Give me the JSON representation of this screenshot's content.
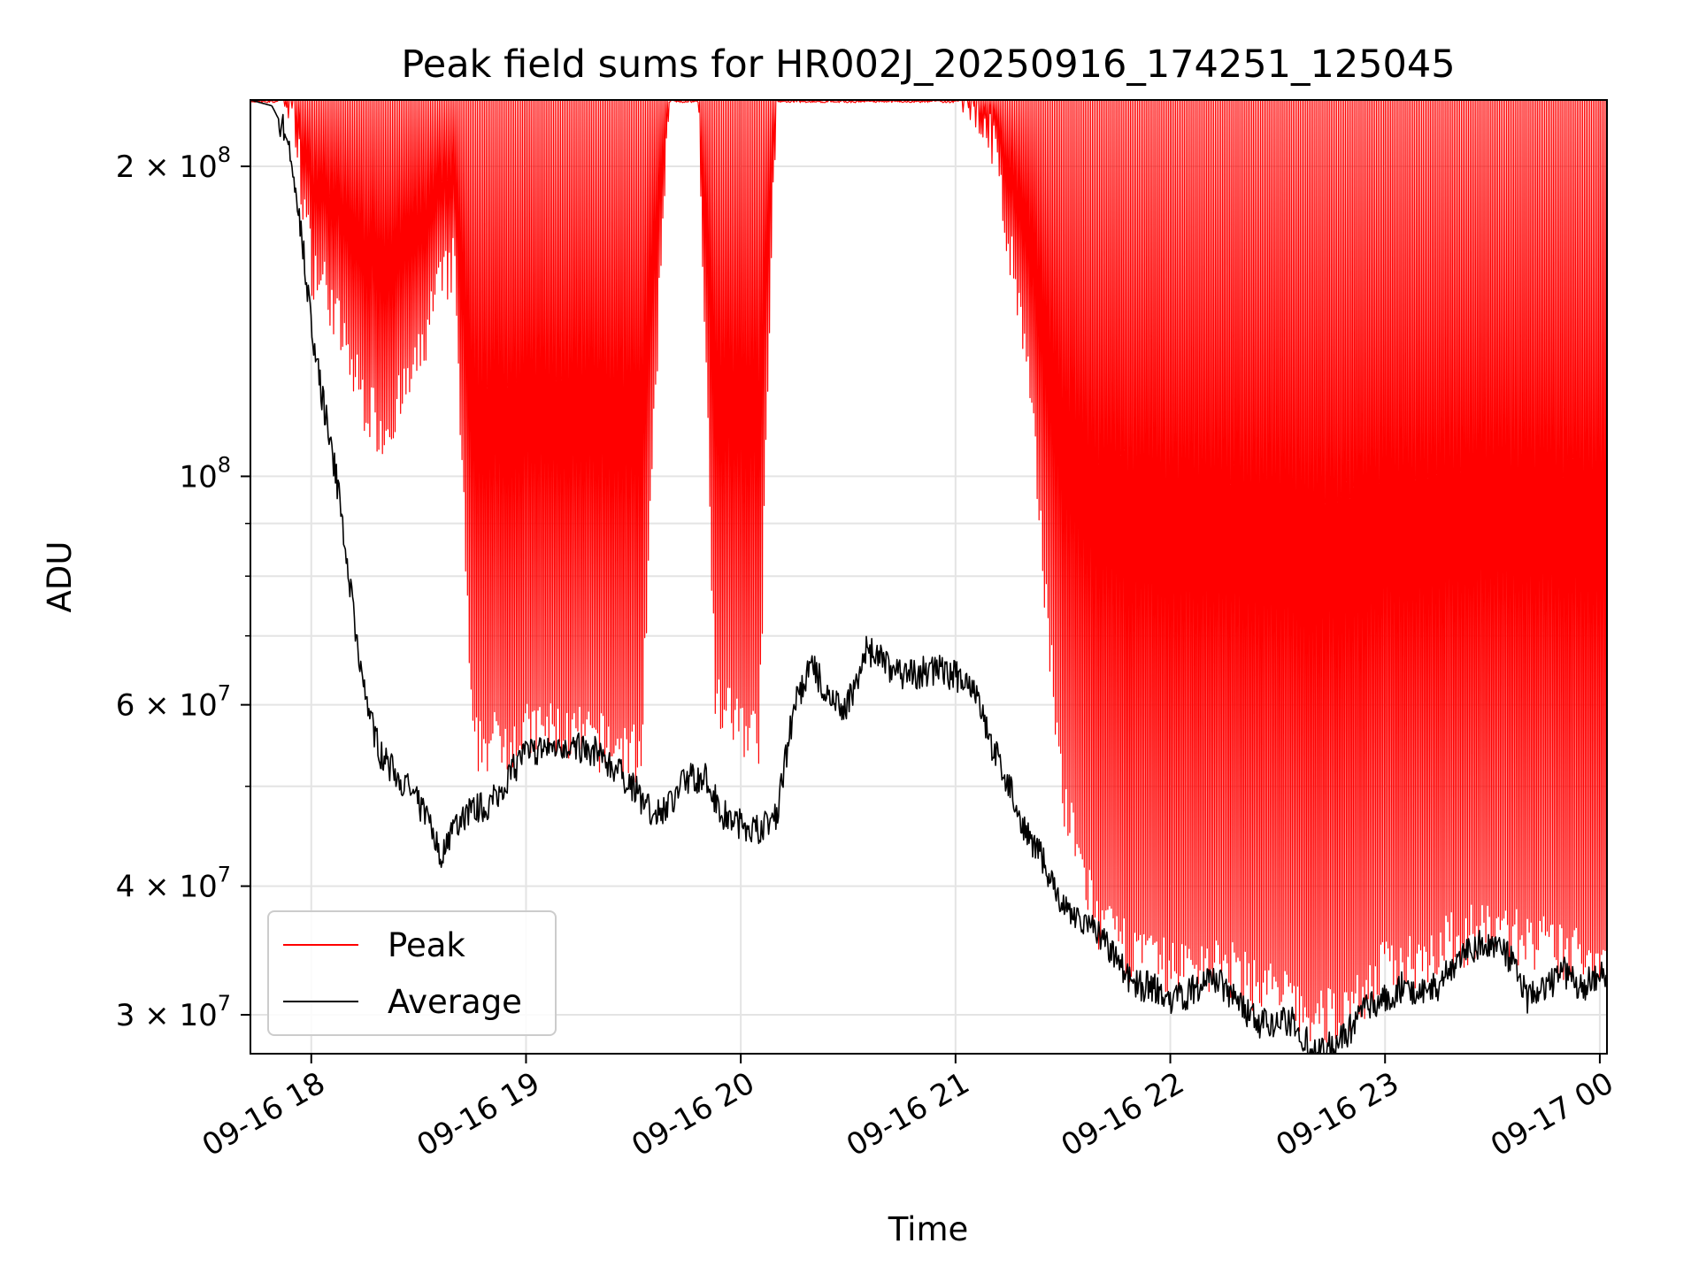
{
  "chart_data": {
    "type": "line",
    "title": "Peak field sums for HR002J_20250916_174251_125045",
    "xlabel": "Time",
    "ylabel": "ADU",
    "yscale": "log",
    "ylim": [
      27500000,
      232000000
    ],
    "xlim": [
      "09-16 17:43",
      "09-17 00:02"
    ],
    "grid": true,
    "legend_position": "lower-left",
    "x_ticks": [
      "09-16 18",
      "09-16 19",
      "09-16 20",
      "09-16 21",
      "09-16 22",
      "09-16 23",
      "09-17 00"
    ],
    "y_ticks_major": [
      {
        "value": 100000000,
        "label": "10",
        "exp": "8"
      },
      {
        "value": 200000000,
        "label": "2 × 10",
        "exp": "8"
      },
      {
        "value": 30000000,
        "label": "3 × 10",
        "exp": "7"
      },
      {
        "value": 40000000,
        "label": "4 × 10",
        "exp": "7"
      },
      {
        "value": 60000000,
        "label": "6 × 10",
        "exp": "7"
      }
    ],
    "y_ticks_minor": [
      50000000,
      70000000,
      80000000,
      90000000
    ],
    "series": [
      {
        "name": "Peak",
        "color": "#ff0000",
        "lower_envelope": [
          [
            "09-16 17:43",
            232000000
          ],
          [
            "09-16 17:50",
            230000000
          ],
          [
            "09-16 17:55",
            210000000
          ],
          [
            "09-16 18:00",
            150000000
          ],
          [
            "09-16 18:05",
            140000000
          ],
          [
            "09-16 18:10",
            122000000
          ],
          [
            "09-16 18:15",
            110000000
          ],
          [
            "09-16 18:20",
            103000000
          ],
          [
            "09-16 18:25",
            110000000
          ],
          [
            "09-16 18:30",
            120000000
          ],
          [
            "09-16 18:35",
            140000000
          ],
          [
            "09-16 18:40",
            150000000
          ],
          [
            "09-16 18:45",
            51000000
          ],
          [
            "09-16 18:55",
            52000000
          ],
          [
            "09-16 19:05",
            53000000
          ],
          [
            "09-16 19:15",
            52000000
          ],
          [
            "09-16 19:25",
            51000000
          ],
          [
            "09-16 19:32",
            50000000
          ],
          [
            "09-16 19:40",
            232000000
          ],
          [
            "09-16 19:48",
            232000000
          ],
          [
            "09-16 19:53",
            56000000
          ],
          [
            "09-16 20:05",
            52000000
          ],
          [
            "09-16 20:10",
            232000000
          ],
          [
            "09-16 21:00",
            232000000
          ],
          [
            "09-16 21:10",
            200000000
          ],
          [
            "09-16 21:20",
            120000000
          ],
          [
            "09-16 21:30",
            45000000
          ],
          [
            "09-16 21:40",
            34000000
          ],
          [
            "09-16 21:50",
            32000000
          ],
          [
            "09-16 22:00",
            31000000
          ],
          [
            "09-16 22:10",
            31500000
          ],
          [
            "09-16 22:20",
            30500000
          ],
          [
            "09-16 22:30",
            29500000
          ],
          [
            "09-16 22:40",
            27500000
          ],
          [
            "09-16 22:50",
            28500000
          ],
          [
            "09-16 23:00",
            31000000
          ],
          [
            "09-16 23:10",
            32000000
          ],
          [
            "09-16 23:20",
            33000000
          ],
          [
            "09-16 23:30",
            34000000
          ],
          [
            "09-16 23:40",
            33000000
          ],
          [
            "09-16 23:50",
            32000000
          ],
          [
            "09-17 00:02",
            32000000
          ]
        ],
        "spike_max": 232000000
      },
      {
        "name": "Average",
        "color": "#000000",
        "points": [
          [
            "09-16 17:43",
            232000000
          ],
          [
            "09-16 17:49",
            229000000
          ],
          [
            "09-16 17:53",
            215000000
          ],
          [
            "09-16 17:57",
            175000000
          ],
          [
            "09-16 18:00",
            140000000
          ],
          [
            "09-16 18:03",
            120000000
          ],
          [
            "09-16 18:07",
            100000000
          ],
          [
            "09-16 18:10",
            82000000
          ],
          [
            "09-16 18:13",
            68000000
          ],
          [
            "09-16 18:16",
            59000000
          ],
          [
            "09-16 18:20",
            53000000
          ],
          [
            "09-16 18:25",
            51000000
          ],
          [
            "09-16 18:30",
            48000000
          ],
          [
            "09-16 18:33",
            46000000
          ],
          [
            "09-16 18:36",
            43000000
          ],
          [
            "09-16 18:40",
            46000000
          ],
          [
            "09-16 18:45",
            47500000
          ],
          [
            "09-16 18:50",
            48000000
          ],
          [
            "09-16 18:55",
            51000000
          ],
          [
            "09-16 19:00",
            54000000
          ],
          [
            "09-16 19:10",
            55000000
          ],
          [
            "09-16 19:20",
            54000000
          ],
          [
            "09-16 19:30",
            50000000
          ],
          [
            "09-16 19:35",
            47000000
          ],
          [
            "09-16 19:40",
            48000000
          ],
          [
            "09-16 19:45",
            51000000
          ],
          [
            "09-16 19:50",
            51000000
          ],
          [
            "09-16 19:55",
            47000000
          ],
          [
            "09-16 20:00",
            46000000
          ],
          [
            "09-16 20:05",
            45500000
          ],
          [
            "09-16 20:10",
            47000000
          ],
          [
            "09-16 20:15",
            60000000
          ],
          [
            "09-16 20:20",
            66000000
          ],
          [
            "09-16 20:25",
            60000000
          ],
          [
            "09-16 20:30",
            60000000
          ],
          [
            "09-16 20:35",
            68000000
          ],
          [
            "09-16 20:45",
            64000000
          ],
          [
            "09-16 20:55",
            65000000
          ],
          [
            "09-16 21:05",
            63000000
          ],
          [
            "09-16 21:10",
            55000000
          ],
          [
            "09-16 21:15",
            50000000
          ],
          [
            "09-16 21:20",
            45000000
          ],
          [
            "09-16 21:25",
            42000000
          ],
          [
            "09-16 21:30",
            38000000
          ],
          [
            "09-16 21:35",
            37000000
          ],
          [
            "09-16 21:40",
            36000000
          ],
          [
            "09-16 21:45",
            34000000
          ],
          [
            "09-16 21:50",
            32000000
          ],
          [
            "09-16 21:55",
            32000000
          ],
          [
            "09-16 22:00",
            31000000
          ],
          [
            "09-16 22:05",
            31500000
          ],
          [
            "09-16 22:10",
            32500000
          ],
          [
            "09-16 22:15",
            32000000
          ],
          [
            "09-16 22:20",
            30500000
          ],
          [
            "09-16 22:25",
            29500000
          ],
          [
            "09-16 22:30",
            29500000
          ],
          [
            "09-16 22:35",
            29500000
          ],
          [
            "09-16 22:40",
            27500000
          ],
          [
            "09-16 22:45",
            28000000
          ],
          [
            "09-16 22:50",
            29000000
          ],
          [
            "09-16 22:55",
            30500000
          ],
          [
            "09-16 23:00",
            31000000
          ],
          [
            "09-16 23:05",
            32000000
          ],
          [
            "09-16 23:10",
            31500000
          ],
          [
            "09-16 23:15",
            32000000
          ],
          [
            "09-16 23:20",
            34000000
          ],
          [
            "09-16 23:25",
            35000000
          ],
          [
            "09-16 23:30",
            35000000
          ],
          [
            "09-16 23:35",
            34000000
          ],
          [
            "09-16 23:40",
            31000000
          ],
          [
            "09-16 23:45",
            32000000
          ],
          [
            "09-16 23:50",
            33000000
          ],
          [
            "09-16 23:55",
            32000000
          ],
          [
            "09-17 00:02",
            33000000
          ]
        ]
      }
    ]
  }
}
